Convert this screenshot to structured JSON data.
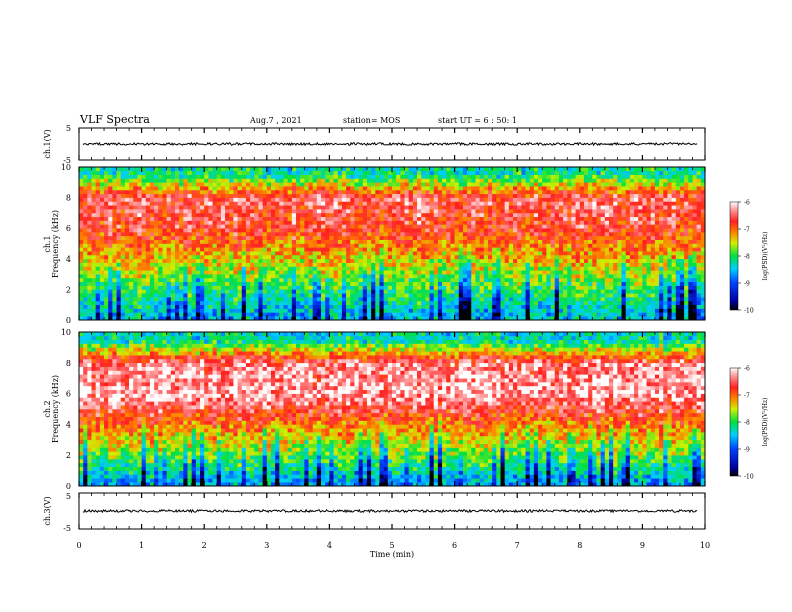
{
  "header": {
    "title": "VLF Spectra",
    "date": "Aug.7 , 2021",
    "station": "station= MOS",
    "start_ut": "start UT = 6 : 50: 1"
  },
  "chart_data": {
    "type": "heatmap",
    "x_axis": {
      "label": "Time (min)",
      "range": [
        0,
        10
      ],
      "ticks": [
        "0",
        "1",
        "2",
        "3",
        "4",
        "5",
        "6",
        "7",
        "8",
        "9",
        "10"
      ]
    },
    "panels": [
      {
        "id": "waveform-ch1",
        "kind": "waveform",
        "ylabel": "ch.1(V)",
        "ylim": [
          -5,
          5
        ],
        "yticks": [
          "5",
          "-5"
        ],
        "level": 0
      },
      {
        "id": "spectrogram-ch1",
        "kind": "spectrogram",
        "ylabel_channel": "ch.1",
        "ylabel": "Frequency (kHz)",
        "ylim": [
          0,
          10
        ],
        "yticks": [
          "0",
          "2",
          "4",
          "6",
          "8",
          "10"
        ],
        "colorbar": {
          "label": "log(PSD)(V²/Hz)",
          "range": [
            -10,
            -6
          ],
          "ticks": [
            "-6",
            "-7",
            "-8",
            "-9",
            "-10"
          ]
        },
        "intensity_profile": [
          {
            "freq": 0.3,
            "level": -8.5
          },
          {
            "freq": 2.0,
            "level": -8.0
          },
          {
            "freq": 4.0,
            "level": -7.3
          },
          {
            "freq": 6.0,
            "level": -6.7
          },
          {
            "freq": 8.0,
            "level": -6.5
          },
          {
            "freq": 9.5,
            "level": -8.2
          }
        ]
      },
      {
        "id": "spectrogram-ch2",
        "kind": "spectrogram",
        "ylabel_channel": "ch.2",
        "ylabel": "Frequency (kHz)",
        "ylim": [
          0,
          10
        ],
        "yticks": [
          "0",
          "2",
          "4",
          "6",
          "8",
          "10"
        ],
        "colorbar": {
          "label": "log(PSD)(V²/Hz)",
          "range": [
            -10,
            -6
          ],
          "ticks": [
            "-6",
            "-7",
            "-8",
            "-9",
            "-10"
          ]
        },
        "intensity_profile": [
          {
            "freq": 0.3,
            "level": -8.6
          },
          {
            "freq": 2.0,
            "level": -7.8
          },
          {
            "freq": 4.0,
            "level": -7.0
          },
          {
            "freq": 6.0,
            "level": -6.2
          },
          {
            "freq": 8.0,
            "level": -6.4
          },
          {
            "freq": 9.5,
            "level": -8.3
          }
        ]
      },
      {
        "id": "waveform-ch3",
        "kind": "waveform",
        "ylabel": "ch.3(V)",
        "ylim": [
          -5,
          5
        ],
        "yticks": [
          "5",
          "-5"
        ],
        "level": 0
      }
    ]
  }
}
